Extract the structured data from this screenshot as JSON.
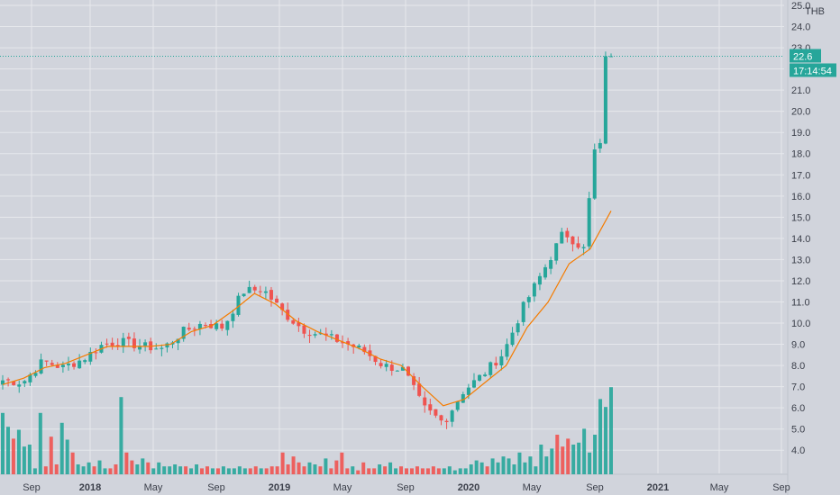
{
  "chart_data": {
    "type": "candlestick",
    "title": "",
    "currency": "THB",
    "ylim": [
      3.5,
      25.0
    ],
    "y_ticks": [
      4.0,
      5.0,
      6.0,
      7.0,
      8.0,
      9.0,
      10.0,
      11.0,
      12.0,
      13.0,
      14.0,
      15.0,
      16.0,
      17.0,
      18.0,
      19.0,
      20.0,
      21.0,
      22.0,
      23.0,
      24.0,
      25.0
    ],
    "y_tick_labels": [
      "4.0",
      "5.0",
      "6.0",
      "7.0",
      "8.0",
      "9.0",
      "10.0",
      "11.0",
      "12.0",
      "13.0",
      "14.0",
      "15.0",
      "16.0",
      "17.0",
      "18.0",
      "19.0",
      "20.0",
      "21.0",
      "22.0",
      "23.0",
      "24.0",
      "25.0"
    ],
    "x_ticks": [
      {
        "label": "Sep",
        "bold": false
      },
      {
        "label": "2018",
        "bold": true
      },
      {
        "label": "May",
        "bold": false
      },
      {
        "label": "Sep",
        "bold": false
      },
      {
        "label": "2019",
        "bold": true
      },
      {
        "label": "May",
        "bold": false
      },
      {
        "label": "Sep",
        "bold": false
      },
      {
        "label": "2020",
        "bold": true
      },
      {
        "label": "May",
        "bold": false
      },
      {
        "label": "Sep",
        "bold": false
      },
      {
        "label": "2021",
        "bold": true
      },
      {
        "label": "May",
        "bold": false
      },
      {
        "label": "Sep",
        "bold": false
      }
    ],
    "last_price": "22.6",
    "countdown": "17:14:54",
    "colors": {
      "up": "#26a69a",
      "down": "#ef5350",
      "ma": "#f57c00",
      "price_line": "#26a69a",
      "grid": "#e6e8ec",
      "background": "#d1d4dc"
    },
    "key_closes": [
      7.3,
      7.2,
      8.2,
      7.9,
      8.3,
      9.0,
      9.1,
      8.9,
      8.8,
      9.6,
      10.0,
      9.8,
      11.5,
      11.6,
      10.5,
      9.7,
      9.4,
      9.1,
      8.7,
      8.0,
      7.8,
      6.0,
      5.3,
      6.8,
      7.6,
      8.6,
      10.8,
      12.5,
      14.3,
      13.5,
      16.0,
      18.5,
      22.6
    ],
    "ma_values": [
      7.1,
      7.4,
      7.9,
      8.1,
      8.5,
      8.9,
      8.9,
      8.9,
      9.0,
      9.6,
      9.9,
      10.6,
      11.4,
      10.9,
      10.1,
      9.6,
      9.2,
      8.8,
      8.3,
      8.0,
      7.0,
      6.1,
      6.4,
      7.2,
      8.0,
      9.8,
      11.0,
      12.8,
      13.5,
      15.3
    ],
    "volume_heights": [
      62,
      48,
      36,
      45,
      28,
      30,
      6,
      62,
      8,
      38,
      10,
      52,
      35,
      22,
      10,
      8,
      12,
      8,
      14,
      6,
      6,
      10,
      78,
      22,
      14,
      10,
      16,
      12,
      6,
      12,
      8,
      8,
      10,
      8,
      8,
      6,
      10,
      6,
      8,
      6,
      6,
      8,
      6,
      6,
      8,
      6,
      6,
      8,
      6,
      6,
      8,
      8,
      22,
      10,
      18,
      12,
      8,
      12,
      10,
      8,
      16,
      6,
      14,
      22,
      6,
      8,
      4,
      12,
      6,
      6,
      10,
      8,
      12,
      6,
      8,
      6,
      6,
      8,
      6,
      6,
      8,
      6,
      6,
      8,
      4,
      6,
      6,
      10,
      14,
      12,
      8,
      16,
      12,
      18,
      16,
      10,
      22,
      12,
      18,
      8,
      30,
      18,
      26,
      40,
      28,
      36,
      30,
      32,
      46,
      22,
      40,
      76,
      68,
      88
    ]
  }
}
